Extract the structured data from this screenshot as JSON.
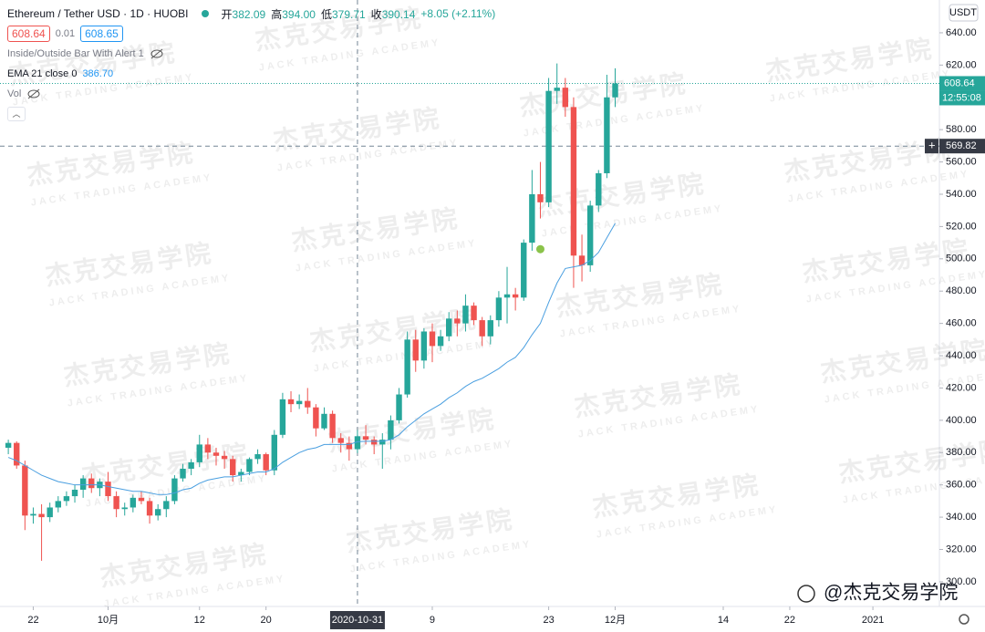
{
  "header": {
    "symbol": "Ethereum / Tether USD · 1D · HUOBI",
    "ohlc": [
      {
        "label": "开",
        "value": "382.09"
      },
      {
        "label": "高",
        "value": "394.00"
      },
      {
        "label": "低",
        "value": "379.71"
      },
      {
        "label": "收",
        "value": "390.14"
      }
    ],
    "change": "+8.05 (+2.11%)",
    "bid": "608.64",
    "spread": "0.01",
    "ask": "608.65",
    "indicators": [
      "Inside/Outside Bar With Alert 1"
    ],
    "ema_label": "EMA 21 close 0",
    "ema_value": "386.70",
    "volume_label": "Vol"
  },
  "currency": "USDT",
  "watermark": {
    "title": "杰克交易学院",
    "subtitle": "JACK TRADING ACADEMY"
  },
  "credit": "@杰克交易学院",
  "chart_data": {
    "type": "candlestick",
    "x": [
      "2020-09-19",
      "2020-09-20",
      "2020-09-21",
      "2020-09-22",
      "2020-09-23",
      "2020-09-24",
      "2020-09-25",
      "2020-09-26",
      "2020-09-27",
      "2020-09-28",
      "2020-09-29",
      "2020-09-30",
      "2020-10-01",
      "2020-10-02",
      "2020-10-03",
      "2020-10-04",
      "2020-10-05",
      "2020-10-06",
      "2020-10-07",
      "2020-10-08",
      "2020-10-09",
      "2020-10-10",
      "2020-10-11",
      "2020-10-12",
      "2020-10-13",
      "2020-10-14",
      "2020-10-15",
      "2020-10-16",
      "2020-10-17",
      "2020-10-18",
      "2020-10-19",
      "2020-10-20",
      "2020-10-21",
      "2020-10-22",
      "2020-10-23",
      "2020-10-24",
      "2020-10-25",
      "2020-10-26",
      "2020-10-27",
      "2020-10-28",
      "2020-10-29",
      "2020-10-30",
      "2020-10-31",
      "2020-11-01",
      "2020-11-02",
      "2020-11-03",
      "2020-11-04",
      "2020-11-05",
      "2020-11-06",
      "2020-11-07",
      "2020-11-08",
      "2020-11-09",
      "2020-11-10",
      "2020-11-11",
      "2020-11-12",
      "2020-11-13",
      "2020-11-14",
      "2020-11-15",
      "2020-11-16",
      "2020-11-17",
      "2020-11-18",
      "2020-11-19",
      "2020-11-20",
      "2020-11-21",
      "2020-11-22",
      "2020-11-23",
      "2020-11-24",
      "2020-11-25",
      "2020-11-26",
      "2020-11-27",
      "2020-11-28",
      "2020-11-29",
      "2020-11-30",
      "2020-12-01"
    ],
    "open": [
      383,
      386,
      372,
      341,
      342,
      340,
      346,
      350,
      353,
      357,
      364,
      358,
      362,
      353,
      345,
      346,
      352,
      350,
      341,
      345,
      350,
      364,
      370,
      374,
      385,
      380,
      378,
      376,
      366,
      368,
      376,
      379,
      369,
      391,
      413,
      410,
      412,
      408,
      395,
      404,
      389,
      386,
      382.09,
      390.14,
      388,
      385,
      388,
      400,
      416,
      450,
      437,
      455,
      446,
      452,
      463,
      460,
      471,
      462,
      452,
      462,
      476,
      478,
      476,
      510,
      540,
      535,
      604,
      606,
      594,
      502,
      496,
      533,
      553,
      600
    ],
    "high": [
      388,
      387,
      375,
      346,
      348,
      349,
      353,
      356,
      360,
      366,
      367,
      364,
      368,
      356,
      349,
      354,
      356,
      352,
      348,
      353,
      366,
      373,
      376,
      391,
      389,
      383,
      381,
      378,
      370,
      377,
      382,
      380,
      394,
      417,
      418,
      416,
      420,
      410,
      408,
      406,
      392,
      390,
      394,
      397,
      390,
      392,
      403,
      420,
      455,
      456,
      457,
      460,
      456,
      467,
      468,
      478,
      473,
      464,
      465,
      480,
      495,
      482,
      512,
      555,
      560,
      612,
      621,
      612,
      600,
      515,
      536,
      555,
      614,
      618
    ],
    "low": [
      379,
      370,
      332,
      336,
      313,
      337,
      343,
      347,
      349,
      352,
      355,
      353,
      350,
      340,
      341,
      343,
      348,
      336,
      338,
      340,
      348,
      362,
      366,
      371,
      376,
      372,
      370,
      362,
      362,
      366,
      373,
      366,
      366,
      389,
      405,
      407,
      404,
      390,
      394,
      386,
      380,
      375,
      379.71,
      385,
      379,
      370,
      382,
      398,
      414,
      430,
      432,
      436,
      443,
      449,
      452,
      455,
      459,
      446,
      447,
      458,
      460,
      468,
      474,
      505,
      525,
      532,
      596,
      588,
      482,
      486,
      492,
      529,
      550,
      594
    ],
    "close": [
      386,
      372,
      341,
      342,
      340,
      346,
      350,
      353,
      357,
      364,
      358,
      362,
      353,
      345,
      346,
      352,
      350,
      341,
      345,
      350,
      364,
      370,
      374,
      385,
      380,
      378,
      376,
      366,
      368,
      376,
      379,
      369,
      391,
      413,
      410,
      412,
      408,
      395,
      404,
      389,
      386,
      382.09,
      390.14,
      388,
      385,
      388,
      400,
      416,
      450,
      437,
      455,
      446,
      452,
      463,
      460,
      471,
      462,
      452,
      462,
      476,
      478,
      476,
      510,
      540,
      535,
      604,
      606,
      594,
      502,
      496,
      533,
      553,
      600,
      608.64
    ],
    "up_color": "#26a69a",
    "down_color": "#ef5350",
    "ema": {
      "color": "#4a9fe0",
      "values": [
        377,
        375,
        372,
        369,
        366,
        364,
        362,
        361,
        360,
        360,
        360,
        360,
        359,
        358,
        357,
        356,
        356,
        355,
        354,
        354,
        355,
        357,
        358,
        361,
        363,
        364,
        365,
        365,
        366,
        367,
        368,
        368,
        370,
        374,
        377,
        380,
        382,
        383,
        385,
        385,
        385,
        385,
        386.7,
        387,
        387,
        387,
        388,
        391,
        396,
        400,
        404,
        407,
        410,
        414,
        417,
        421,
        424,
        426,
        429,
        432,
        436,
        439,
        445,
        453,
        460,
        473,
        485,
        494,
        495,
        496,
        499,
        504,
        513,
        522
      ]
    },
    "markers": [
      {
        "x": "2020-11-22",
        "value": 506,
        "color": "#8bc34a"
      }
    ],
    "xlim": [
      "2020-09-18",
      "2021-01-09"
    ],
    "xticks": [
      {
        "value": "2020-09-22",
        "label": "22"
      },
      {
        "value": "2020-10-01",
        "label": "10月"
      },
      {
        "value": "2020-10-12",
        "label": "12"
      },
      {
        "value": "2020-10-20",
        "label": "20"
      },
      {
        "value": "2020-11-09",
        "label": "9"
      },
      {
        "value": "2020-11-23",
        "label": "23"
      },
      {
        "value": "2020-12-01",
        "label": "12月"
      },
      {
        "value": "2020-12-14",
        "label": "14"
      },
      {
        "value": "2020-12-22",
        "label": "22"
      },
      {
        "value": "2021-01-01",
        "label": "2021"
      }
    ],
    "ylim": [
      284.7,
      660.3
    ],
    "yticks": [
      {
        "value": 300,
        "label": "300.00"
      },
      {
        "value": 320,
        "label": "320.00"
      },
      {
        "value": 340,
        "label": "340.00"
      },
      {
        "value": 360,
        "label": "360.00"
      },
      {
        "value": 380,
        "label": "380.00"
      },
      {
        "value": 400,
        "label": "400.00"
      },
      {
        "value": 420,
        "label": "420.00"
      },
      {
        "value": 440,
        "label": "440.00"
      },
      {
        "value": 460,
        "label": "460.00"
      },
      {
        "value": 480,
        "label": "480.00"
      },
      {
        "value": 500,
        "label": "500.00"
      },
      {
        "value": 520,
        "label": "520.00"
      },
      {
        "value": 540,
        "label": "540.00"
      },
      {
        "value": 560,
        "label": "560.00"
      },
      {
        "value": 580,
        "label": "580.00"
      },
      {
        "value": 600,
        "label": "600.00"
      },
      {
        "value": 620,
        "label": "620.00"
      },
      {
        "value": 640,
        "label": "640.00"
      }
    ],
    "last_price": {
      "value": 608.64,
      "label": "608.64",
      "countdown": "12:55:08"
    },
    "crosshair": {
      "x": "2020-10-31",
      "x_label": "2020-10-31",
      "value": 569.82,
      "label": "569.82"
    }
  }
}
